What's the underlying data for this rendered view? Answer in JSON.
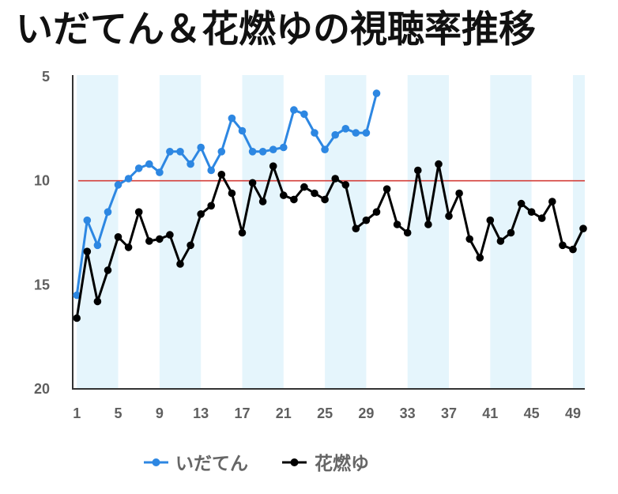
{
  "chart_data": {
    "type": "line",
    "title": "いだてん＆花燃ゆの視聴率推移",
    "xlabel": "",
    "ylabel": "",
    "x_ticks": [
      "1",
      "5",
      "9",
      "13",
      "17",
      "21",
      "25",
      "29",
      "33",
      "37",
      "41",
      "45",
      "49"
    ],
    "y_ticks": [
      "5",
      "10",
      "15",
      "20"
    ],
    "xlim": [
      0.6,
      50.15
    ],
    "ylim": [
      5,
      20
    ],
    "y_inverted": true,
    "grid": false,
    "legend_position": "bottom",
    "reference_line": {
      "value": 10,
      "color": "#d43f3a"
    },
    "shaded_bands": [
      [
        1,
        5
      ],
      [
        9,
        13
      ],
      [
        17,
        21
      ],
      [
        25,
        29
      ],
      [
        33,
        37
      ],
      [
        41,
        45
      ],
      [
        49,
        50.15
      ]
    ],
    "band_color": "#e5f5fc",
    "series": [
      {
        "name": "いだてん",
        "color": "#2d87e2",
        "x_start": 1,
        "values": [
          15.5,
          11.9,
          13.1,
          11.5,
          10.2,
          9.9,
          9.4,
          9.2,
          9.6,
          8.6,
          8.6,
          9.2,
          8.4,
          9.5,
          8.6,
          7.0,
          7.6,
          8.6,
          8.6,
          8.5,
          8.4,
          6.6,
          6.8,
          7.7,
          8.5,
          7.8,
          7.5,
          7.7,
          7.7,
          5.8
        ]
      },
      {
        "name": "花燃ゆ",
        "color": "#000000",
        "x_start": 1,
        "values": [
          16.6,
          13.4,
          15.8,
          14.3,
          12.7,
          13.2,
          11.5,
          12.9,
          12.8,
          12.6,
          14.0,
          13.1,
          11.6,
          11.2,
          9.7,
          10.6,
          12.5,
          10.1,
          11.0,
          9.3,
          10.7,
          10.9,
          10.3,
          10.6,
          10.9,
          9.9,
          10.2,
          12.3,
          11.9,
          11.5,
          10.4,
          12.1,
          12.5,
          9.5,
          12.1,
          9.2,
          11.7,
          10.6,
          12.8,
          13.7,
          11.9,
          12.9,
          12.5,
          11.1,
          11.5,
          11.8,
          11.0,
          13.1,
          13.3,
          12.3
        ]
      }
    ]
  }
}
